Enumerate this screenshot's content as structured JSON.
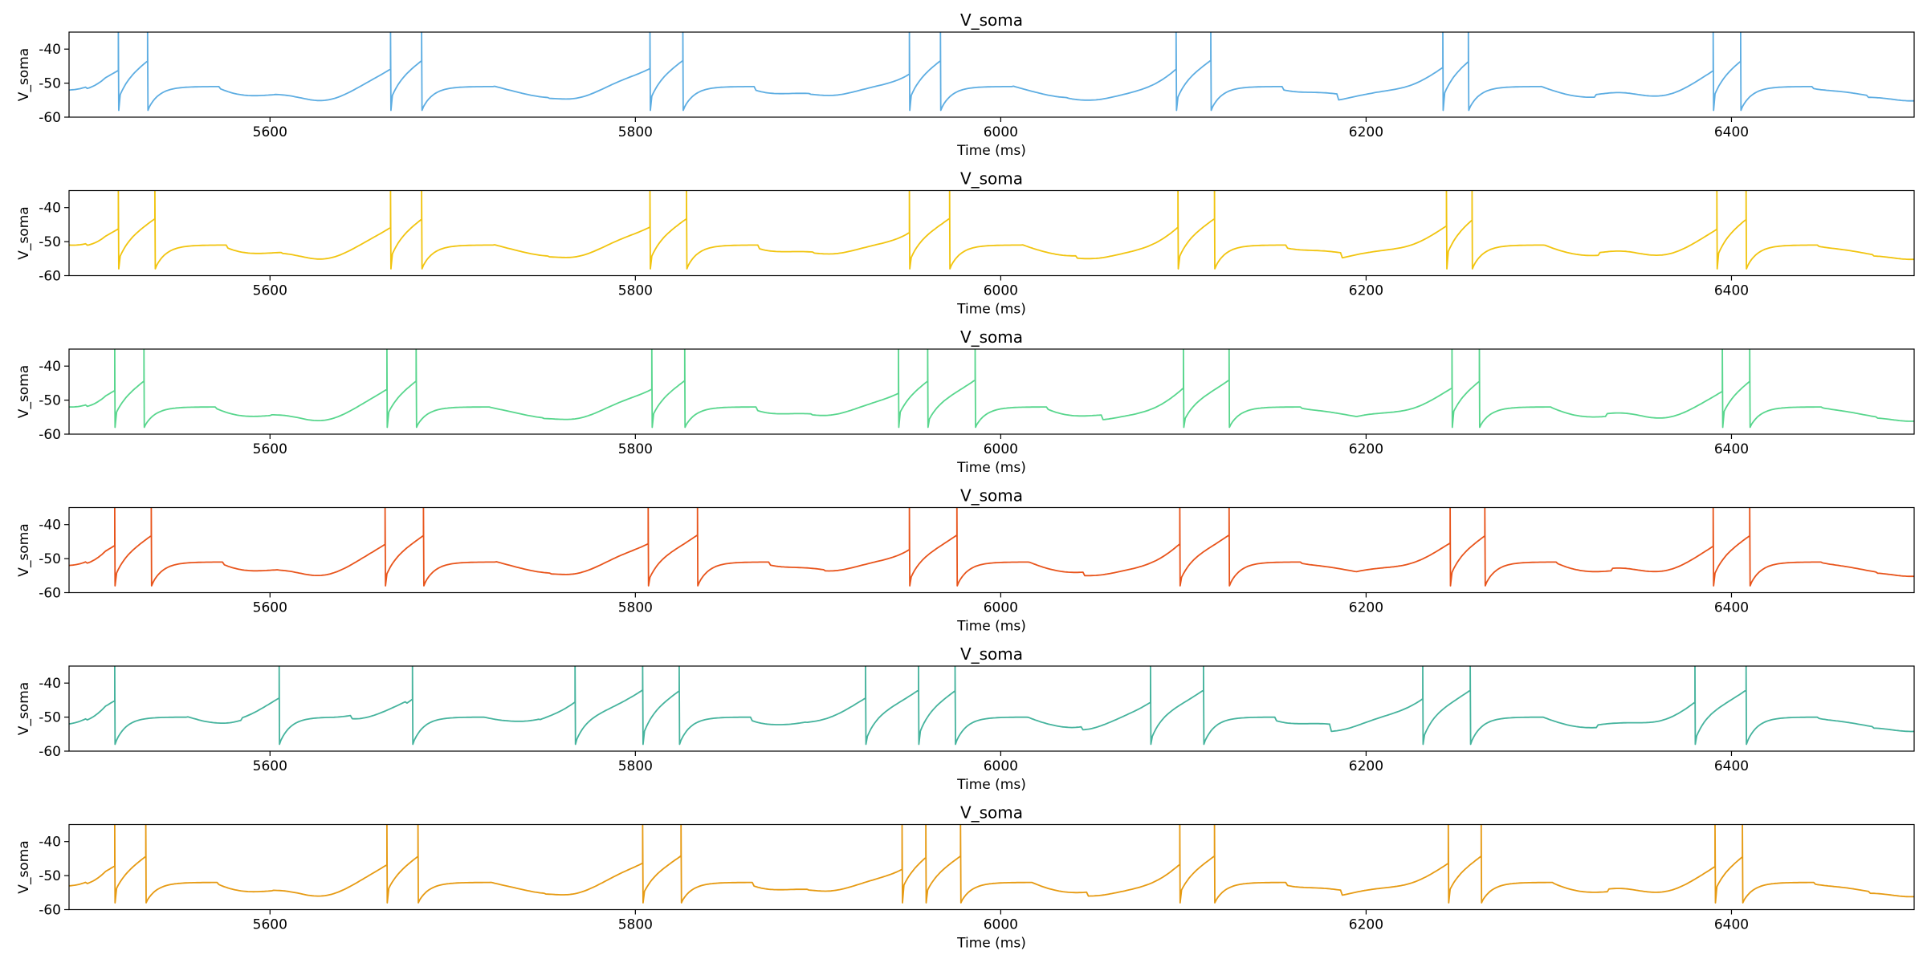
{
  "chart_data": [
    {
      "type": "line",
      "title": "V_soma",
      "xlabel": "Time (ms)",
      "ylabel": "V_soma",
      "xlim": [
        5490,
        6500
      ],
      "ylim": [
        -60,
        -35
      ],
      "xticks": [
        5600,
        5800,
        6000,
        6200,
        6400
      ],
      "yticks": [
        -60,
        -50,
        -40
      ],
      "grid": false,
      "color": "#5DADE2",
      "spike_pairs": [
        [
          5517,
          5533
        ],
        [
          5666,
          5683
        ],
        [
          5808,
          5826
        ],
        [
          5950,
          5967
        ],
        [
          6096,
          6115
        ],
        [
          6242,
          6256
        ],
        [
          6390,
          6405
        ]
      ],
      "baseline_mV": -54,
      "series": [
        {
          "x": [
            5490,
            5517,
            5533,
            5666,
            5683,
            5808,
            5826,
            5950,
            5967,
            6096,
            6115,
            6242,
            6256,
            6390,
            6405,
            6500
          ],
          "values": [
            -52,
            -35,
            -35,
            -35,
            -35,
            -35,
            -35,
            -35,
            -35,
            -35,
            -35,
            -35,
            -35,
            -35,
            -35,
            -52
          ]
        }
      ]
    },
    {
      "type": "line",
      "title": "V_soma",
      "xlabel": "Time (ms)",
      "ylabel": "V_soma",
      "xlim": [
        5490,
        6500
      ],
      "ylim": [
        -60,
        -35
      ],
      "xticks": [
        5600,
        5800,
        6000,
        6200,
        6400
      ],
      "yticks": [
        -60,
        -50,
        -40
      ],
      "grid": false,
      "color": "#F1C40F",
      "spike_pairs": [
        [
          5517,
          5537
        ],
        [
          5666,
          5683
        ],
        [
          5808,
          5828
        ],
        [
          5950,
          5972
        ],
        [
          6097,
          6117
        ],
        [
          6244,
          6258
        ],
        [
          6392,
          6408
        ]
      ],
      "baseline_mV": -54,
      "series": [
        {
          "x": [
            5490,
            5517,
            5537,
            5666,
            5683,
            5808,
            5828,
            5950,
            5972,
            6097,
            6117,
            6244,
            6258,
            6392,
            6408,
            6500
          ],
          "values": [
            -51,
            -35,
            -35,
            -35,
            -35,
            -35,
            -35,
            -35,
            -35,
            -35,
            -35,
            -35,
            -35,
            -35,
            -35,
            -52
          ]
        }
      ]
    },
    {
      "type": "line",
      "title": "V_soma",
      "xlabel": "Time (ms)",
      "ylabel": "V_soma",
      "xlim": [
        5490,
        6500
      ],
      "ylim": [
        -60,
        -35
      ],
      "xticks": [
        5600,
        5800,
        6000,
        6200,
        6400
      ],
      "yticks": [
        -60,
        -50,
        -40
      ],
      "grid": false,
      "color": "#58D68D",
      "spike_pairs": [
        [
          5515,
          5531
        ],
        [
          5664,
          5680
        ],
        [
          5809,
          5827
        ],
        [
          5944,
          5960
        ],
        [
          5986,
          5986
        ],
        [
          6100,
          6125
        ],
        [
          6247,
          6262
        ],
        [
          6395,
          6410
        ]
      ],
      "baseline_mV": -55,
      "series": [
        {
          "x": [
            5490,
            5515,
            5531,
            5664,
            5680,
            5809,
            5827,
            5944,
            5960,
            5986,
            6100,
            6125,
            6247,
            6262,
            6395,
            6410,
            6500
          ],
          "values": [
            -52,
            -35,
            -35,
            -35,
            -35,
            -35,
            -35,
            -35,
            -35,
            -35,
            -35,
            -35,
            -35,
            -35,
            -35,
            -35,
            -54
          ]
        }
      ]
    },
    {
      "type": "line",
      "title": "V_soma",
      "xlabel": "Time (ms)",
      "ylabel": "V_soma",
      "xlim": [
        5490,
        6500
      ],
      "ylim": [
        -60,
        -35
      ],
      "xticks": [
        5600,
        5800,
        6000,
        6200,
        6400
      ],
      "yticks": [
        -60,
        -50,
        -40
      ],
      "grid": false,
      "color": "#E8541B",
      "spike_pairs": [
        [
          5515,
          5535
        ],
        [
          5663,
          5684
        ],
        [
          5807,
          5834
        ],
        [
          5950,
          5976
        ],
        [
          6098,
          6125
        ],
        [
          6246,
          6265
        ],
        [
          6390,
          6410
        ]
      ],
      "baseline_mV": -54,
      "series": [
        {
          "x": [
            5490,
            5515,
            5535,
            5663,
            5684,
            5807,
            5834,
            5950,
            5976,
            6098,
            6125,
            6246,
            6265,
            6390,
            6410,
            6500
          ],
          "values": [
            -52,
            -35,
            -35,
            -35,
            -35,
            -35,
            -35,
            -35,
            -35,
            -35,
            -35,
            -35,
            -35,
            -35,
            -35,
            -52
          ]
        }
      ]
    },
    {
      "type": "line",
      "title": "V_soma",
      "xlabel": "Time (ms)",
      "ylabel": "V_soma",
      "xlim": [
        5490,
        6500
      ],
      "ylim": [
        -60,
        -35
      ],
      "xticks": [
        5600,
        5800,
        6000,
        6200,
        6400
      ],
      "yticks": [
        -60,
        -50,
        -40
      ],
      "grid": false,
      "color": "#45B39D",
      "spike_pairs": [
        [
          5515,
          5515
        ],
        [
          5605,
          5605
        ],
        [
          5678,
          5678
        ],
        [
          5767,
          5767
        ],
        [
          5804,
          5824
        ],
        [
          5926,
          5926
        ],
        [
          5955,
          5975
        ],
        [
          6082,
          6111
        ],
        [
          6231,
          6257
        ],
        [
          6380,
          6408
        ]
      ],
      "baseline_mV": -53,
      "series": [
        {
          "x": [
            5490,
            5515,
            5605,
            5678,
            5767,
            5804,
            5824,
            5926,
            5955,
            5975,
            6082,
            6111,
            6231,
            6257,
            6380,
            6408,
            6500
          ],
          "values": [
            -52,
            -35,
            -35,
            -35,
            -35,
            -35,
            -35,
            -35,
            -35,
            -35,
            -35,
            -35,
            -35,
            -35,
            -35,
            -35,
            -51
          ]
        }
      ]
    },
    {
      "type": "line",
      "title": "V_soma",
      "xlabel": "Time (ms)",
      "ylabel": "V_soma",
      "xlim": [
        5490,
        6500
      ],
      "ylim": [
        -60,
        -35
      ],
      "xticks": [
        5600,
        5800,
        6000,
        6200,
        6400
      ],
      "yticks": [
        -60,
        -50,
        -40
      ],
      "grid": false,
      "color": "#E69A12",
      "spike_pairs": [
        [
          5515,
          5532
        ],
        [
          5664,
          5681
        ],
        [
          5804,
          5825
        ],
        [
          5946,
          5959
        ],
        [
          5978,
          5978
        ],
        [
          6098,
          6117
        ],
        [
          6245,
          6263
        ],
        [
          6391,
          6406
        ]
      ],
      "baseline_mV": -55,
      "series": [
        {
          "x": [
            5490,
            5515,
            5532,
            5664,
            5681,
            5804,
            5825,
            5946,
            5959,
            5978,
            6098,
            6117,
            6245,
            6263,
            6391,
            6406,
            6500
          ],
          "values": [
            -53,
            -35,
            -35,
            -35,
            -35,
            -35,
            -35,
            -35,
            -35,
            -35,
            -35,
            -35,
            -35,
            -35,
            -35,
            -35,
            -54
          ]
        }
      ]
    }
  ]
}
